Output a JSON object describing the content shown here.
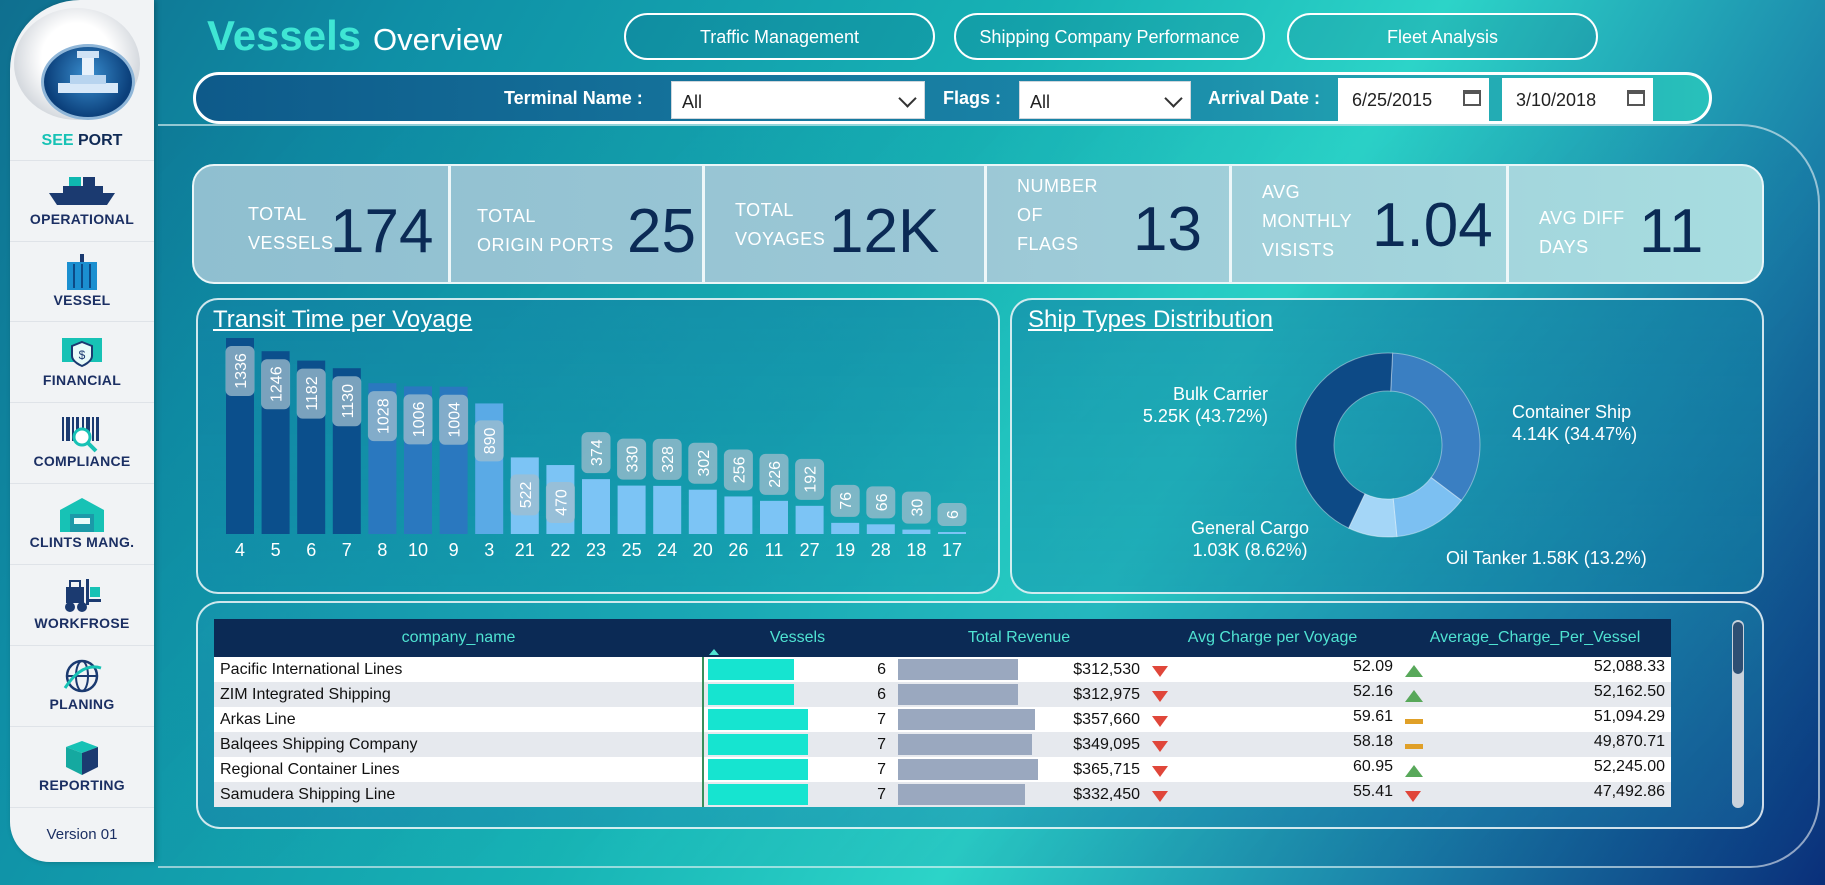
{
  "sidebar": {
    "brand_see": "SEE",
    "brand_port": "PORT",
    "items": [
      {
        "label": "OPERATIONAL",
        "icon": "ship-icon"
      },
      {
        "label": "VESSEL",
        "icon": "container-icon"
      },
      {
        "label": "FINANCIAL",
        "icon": "money-shield-icon"
      },
      {
        "label": "COMPLIANCE",
        "icon": "barcode-search-icon"
      },
      {
        "label": "CLINTS MANG.",
        "icon": "warehouse-icon"
      },
      {
        "label": "WORKFROSE",
        "icon": "forklift-icon"
      },
      {
        "label": "PLANING",
        "icon": "globe-icon"
      },
      {
        "label": "REPORTING",
        "icon": "boxes-icon"
      }
    ],
    "version": "Version 01"
  },
  "header": {
    "title_main": "Vessels",
    "title_sub": "Overview",
    "nav_buttons": [
      "Traffic Management",
      "Shipping Company Performance",
      "Fleet Analysis"
    ]
  },
  "filters": {
    "terminal_label": "Terminal Name :",
    "terminal_value": "All",
    "flags_label": "Flags :",
    "flags_value": "All",
    "arrival_label": "Arrival Date :",
    "date_from": "6/25/2015",
    "date_to": "3/10/2018"
  },
  "kpis": [
    {
      "label_lines": [
        "TOTAL",
        "VESSELS"
      ],
      "value": "174"
    },
    {
      "label_lines": [
        "TOTAL",
        "ORIGIN PORTS"
      ],
      "value": "25"
    },
    {
      "label_lines": [
        "TOTAL",
        "VOYAGES"
      ],
      "value": "12K"
    },
    {
      "label_lines": [
        "NUMBER",
        "OF",
        "FLAGS"
      ],
      "value": "13"
    },
    {
      "label_lines": [
        "AVG",
        "MONTHLY",
        "VISISTS"
      ],
      "value": "1.04"
    },
    {
      "label_lines": [
        "AVG DIFF",
        "DAYS"
      ],
      "value": "11"
    }
  ],
  "transit_chart_title": "Transit Time per Voyage",
  "donut_title": "Ship Types Distribution",
  "chart_data": [
    {
      "type": "bar",
      "title": "Transit Time per Voyage",
      "categories": [
        "4",
        "5",
        "6",
        "7",
        "8",
        "10",
        "9",
        "3",
        "21",
        "22",
        "23",
        "25",
        "24",
        "20",
        "26",
        "11",
        "27",
        "19",
        "28",
        "18",
        "17"
      ],
      "values": [
        1336,
        1246,
        1182,
        1130,
        1028,
        1006,
        1004,
        890,
        522,
        470,
        374,
        330,
        328,
        302,
        256,
        226,
        192,
        76,
        66,
        30,
        6
      ],
      "colors": [
        "#0b4f8c",
        "#0b4f8c",
        "#0b4f8c",
        "#0b4f8c",
        "#2a78bf",
        "#2a78bf",
        "#2a78bf",
        "#5aaae6",
        "#7cc4f5",
        "#7cc4f5",
        "#7cc4f5",
        "#7cc4f5",
        "#7cc4f5",
        "#7cc4f5",
        "#7cc4f5",
        "#7cc4f5",
        "#7cc4f5",
        "#7cc4f5",
        "#7cc4f5",
        "#7cc4f5",
        "#7cc4f5"
      ]
    },
    {
      "type": "pie",
      "title": "Ship Types Distribution",
      "slices": [
        {
          "name": "Container Ship",
          "value": 4.14,
          "label": "4.14K (34.47%)",
          "color": "#3a7fc2"
        },
        {
          "name": "Oil Tanker",
          "value": 1.58,
          "label": "1.58K (13.2%)",
          "color": "#7cc0f2"
        },
        {
          "name": "General Cargo",
          "value": 1.03,
          "label": "1.03K (8.62%)",
          "color": "#a4d6f7"
        },
        {
          "name": "Bulk Carrier",
          "value": 5.25,
          "label": "5.25K (43.72%)",
          "color": "#0d4a86"
        }
      ]
    }
  ],
  "table": {
    "headers": [
      "company_name",
      "Vessels",
      "Total Revenue",
      "Avg Charge per Voyage",
      "Average_Charge_Per_Vessel"
    ],
    "max_vessels": 7,
    "max_revenue": 365715,
    "rows": [
      {
        "name": "Pacific International Lines",
        "vessels": 6,
        "revenue": 312530,
        "revenue_text": "$312,530",
        "avg_voyage": "52.09",
        "voyage_ind": "down",
        "avg_vessel": "52,088.33",
        "vessel_ind": "up"
      },
      {
        "name": "ZIM Integrated Shipping",
        "vessels": 6,
        "revenue": 312975,
        "revenue_text": "$312,975",
        "avg_voyage": "52.16",
        "voyage_ind": "down",
        "avg_vessel": "52,162.50",
        "vessel_ind": "up"
      },
      {
        "name": "Arkas Line",
        "vessels": 7,
        "revenue": 357660,
        "revenue_text": "$357,660",
        "avg_voyage": "59.61",
        "voyage_ind": "down",
        "avg_vessel": "51,094.29",
        "vessel_ind": "flat"
      },
      {
        "name": "Balqees Shipping Company",
        "vessels": 7,
        "revenue": 349095,
        "revenue_text": "$349,095",
        "avg_voyage": "58.18",
        "voyage_ind": "down",
        "avg_vessel": "49,870.71",
        "vessel_ind": "flat"
      },
      {
        "name": "Regional Container Lines",
        "vessels": 7,
        "revenue": 365715,
        "revenue_text": "$365,715",
        "avg_voyage": "60.95",
        "voyage_ind": "down",
        "avg_vessel": "52,245.00",
        "vessel_ind": "up"
      },
      {
        "name": "Samudera Shipping Line",
        "vessels": 7,
        "revenue": 332450,
        "revenue_text": "$332,450",
        "avg_voyage": "55.41",
        "voyage_ind": "down",
        "avg_vessel": "47,492.86",
        "vessel_ind": "down"
      }
    ]
  }
}
